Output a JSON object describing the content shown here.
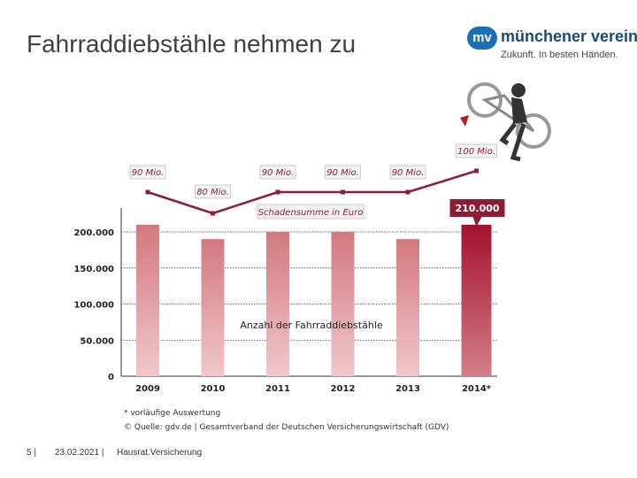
{
  "slide": {
    "title": "Fahrraddiebstähle nehmen zu"
  },
  "logo": {
    "badge": "mv",
    "name": "münchener verein",
    "tagline": "Zukunft. In besten Händen."
  },
  "chart_data": {
    "type": "bar",
    "categories": [
      "2009",
      "2010",
      "2011",
      "2012",
      "2013",
      "2014*"
    ],
    "series": [
      {
        "name": "Anzahl der Fahrraddiebstähle",
        "values": [
          210000,
          190000,
          200000,
          200000,
          190000,
          210000
        ]
      },
      {
        "name": "Schadensumme in Euro",
        "values": [
          90,
          80,
          90,
          90,
          90,
          100
        ],
        "labels": [
          "90 Mio.",
          "80 Mio.",
          "90 Mio.",
          "90 Mio.",
          "90 Mio.",
          "100 Mio."
        ]
      }
    ],
    "highlight_label": "210.000",
    "yticks": [
      0,
      50000,
      100000,
      150000,
      200000
    ],
    "ytick_labels": [
      "0",
      "50.000",
      "100.000",
      "150.000",
      "200.000"
    ],
    "ylim": [
      0,
      230000
    ],
    "line_label": "Schadensumme in Euro",
    "bar_label": "Anzahl der Fahrraddiebstähle",
    "colors": {
      "bar": "#d98f95",
      "bar_highlight": "#a3122f",
      "line": "#8c1d35",
      "callout": "#8c1d35"
    }
  },
  "notes": {
    "footnote": "* vorläufige Auswertung",
    "source": "© Quelle: gdv.de | Gesamtverband der Deutschen Versicherungswirtschaft (GDV)"
  },
  "footer": {
    "page": "5 |",
    "date": "23.02.2021 |",
    "topic": "Hausrat.Versicherung"
  }
}
